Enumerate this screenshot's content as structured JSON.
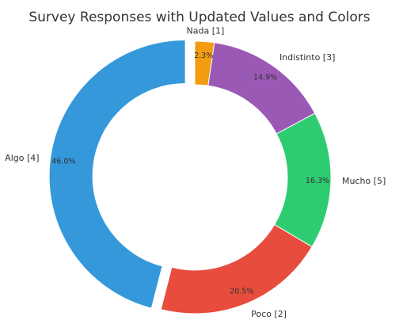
{
  "chart_data": {
    "type": "pie",
    "donut": true,
    "title": "Survey Responses with Updated Values and Colors",
    "slices": [
      {
        "label": "Nada [1]",
        "percent_label": "2.3%",
        "value": 2.3,
        "color": "#f39c12",
        "explode": false
      },
      {
        "label": "Indistinto [3]",
        "percent_label": "14.9%",
        "value": 14.9,
        "color": "#9b59b6",
        "explode": false
      },
      {
        "label": "Mucho [5]",
        "percent_label": "16.3%",
        "value": 16.3,
        "color": "#2ecc71",
        "explode": false
      },
      {
        "label": "Poco [2]",
        "percent_label": "20.5%",
        "value": 20.5,
        "color": "#e74c3c",
        "explode": false
      },
      {
        "label": "Algo [4]",
        "percent_label": "46.0%",
        "value": 46.0,
        "color": "#3498db",
        "explode": true
      }
    ],
    "start_angle": "12 o'clock",
    "direction": "clockwise"
  }
}
